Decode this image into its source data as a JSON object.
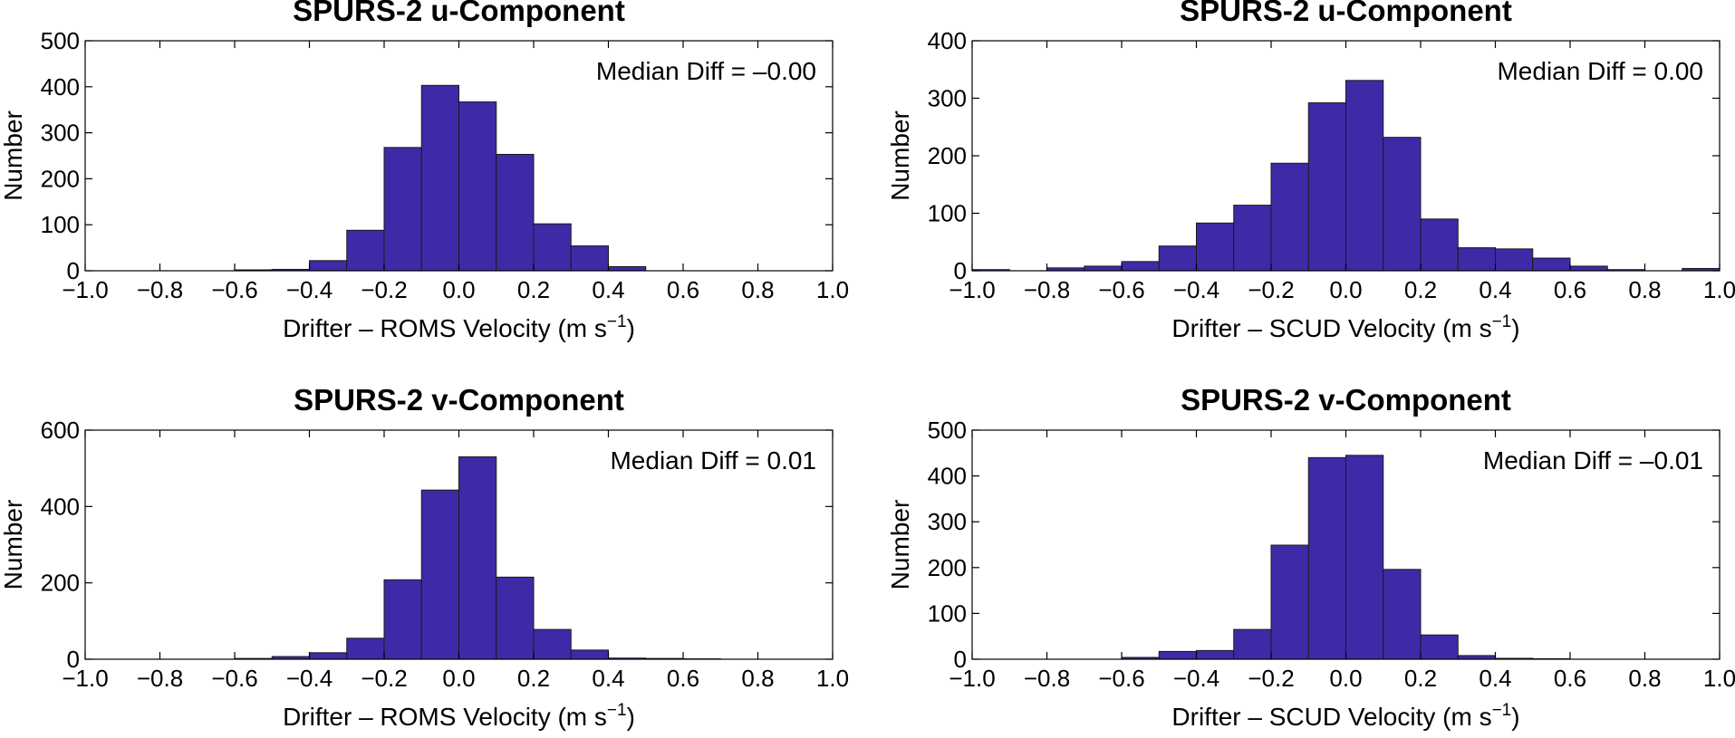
{
  "chart_data": [
    {
      "type": "bar",
      "title": "SPURS-2 u-Component",
      "xlabel_main": "Drifter – ROMS Velocity (m s",
      "xlabel_sup": "−1",
      "xlabel_end": ")",
      "ylabel": "Number",
      "annotation": "Median Diff = –0.00",
      "xlim": [
        -1.0,
        1.0
      ],
      "ylim": [
        0,
        500
      ],
      "xticks": [
        "−1.0",
        "−0.8",
        "−0.6",
        "−0.4",
        "−0.2",
        "0.0",
        "0.2",
        "0.4",
        "0.6",
        "0.8",
        "1.0"
      ],
      "yticks": [
        "0",
        "100",
        "200",
        "300",
        "400",
        "500"
      ],
      "bin_edges": [
        -0.6,
        -0.5,
        -0.4,
        -0.3,
        -0.2,
        -0.1,
        0.0,
        0.1,
        0.2,
        0.3,
        0.4,
        0.5
      ],
      "values": [
        2,
        3,
        22,
        88,
        268,
        403,
        367,
        253,
        102,
        54,
        9
      ],
      "bar_color": "#3e2aa7"
    },
    {
      "type": "bar",
      "title": "SPURS-2 u-Component",
      "xlabel_main": "Drifter – SCUD Velocity (m s",
      "xlabel_sup": "−1",
      "xlabel_end": ")",
      "ylabel": "Number",
      "annotation": "Median Diff = 0.00",
      "xlim": [
        -1.0,
        1.0
      ],
      "ylim": [
        0,
        400
      ],
      "xticks": [
        "−1.0",
        "−0.8",
        "−0.6",
        "−0.4",
        "−0.2",
        "0.0",
        "0.2",
        "0.4",
        "0.6",
        "0.8",
        "1.0"
      ],
      "yticks": [
        "0",
        "100",
        "200",
        "300",
        "400"
      ],
      "bin_edges": [
        -1.0,
        -0.9,
        -0.8,
        -0.7,
        -0.6,
        -0.5,
        -0.4,
        -0.3,
        -0.2,
        -0.1,
        0.0,
        0.1,
        0.2,
        0.3,
        0.4,
        0.5,
        0.6,
        0.7,
        0.8,
        0.9,
        1.0
      ],
      "values": [
        2,
        0,
        5,
        8,
        16,
        43,
        83,
        114,
        187,
        292,
        331,
        232,
        90,
        40,
        38,
        22,
        8,
        2,
        0,
        4
      ],
      "bar_color": "#3e2aa7"
    },
    {
      "type": "bar",
      "title": "SPURS-2 v-Component",
      "xlabel_main": "Drifter – ROMS Velocity (m s",
      "xlabel_sup": "−1",
      "xlabel_end": ")",
      "ylabel": "Number",
      "annotation": "Median Diff = 0.01",
      "xlim": [
        -1.0,
        1.0
      ],
      "ylim": [
        0,
        600
      ],
      "xticks": [
        "−1.0",
        "−0.8",
        "−0.6",
        "−0.4",
        "−0.2",
        "0.0",
        "0.2",
        "0.4",
        "0.6",
        "0.8",
        "1.0"
      ],
      "yticks": [
        "0",
        "200",
        "400",
        "600"
      ],
      "bin_edges": [
        -0.6,
        -0.5,
        -0.4,
        -0.3,
        -0.2,
        -0.1,
        0.0,
        0.1,
        0.2,
        0.3,
        0.4,
        0.5,
        0.6,
        0.7
      ],
      "values": [
        2,
        7,
        17,
        55,
        208,
        443,
        530,
        215,
        78,
        24,
        3,
        2,
        1
      ],
      "bar_color": "#3e2aa7"
    },
    {
      "type": "bar",
      "title": "SPURS-2 v-Component",
      "xlabel_main": "Drifter – SCUD Velocity (m s",
      "xlabel_sup": "−1",
      "xlabel_end": ")",
      "ylabel": "Number",
      "annotation": "Median Diff = –0.01",
      "xlim": [
        -1.0,
        1.0
      ],
      "ylim": [
        0,
        500
      ],
      "xticks": [
        "−1.0",
        "−0.8",
        "−0.6",
        "−0.4",
        "−0.2",
        "0.0",
        "0.2",
        "0.4",
        "0.6",
        "0.8",
        "1.0"
      ],
      "yticks": [
        "0",
        "100",
        "200",
        "300",
        "400",
        "500"
      ],
      "bin_edges": [
        -0.6,
        -0.5,
        -0.4,
        -0.3,
        -0.2,
        -0.1,
        0.0,
        0.1,
        0.2,
        0.3,
        0.4,
        0.5,
        0.6
      ],
      "values": [
        4,
        17,
        19,
        65,
        249,
        440,
        445,
        196,
        53,
        8,
        2,
        1
      ],
      "bar_color": "#3e2aa7"
    }
  ]
}
